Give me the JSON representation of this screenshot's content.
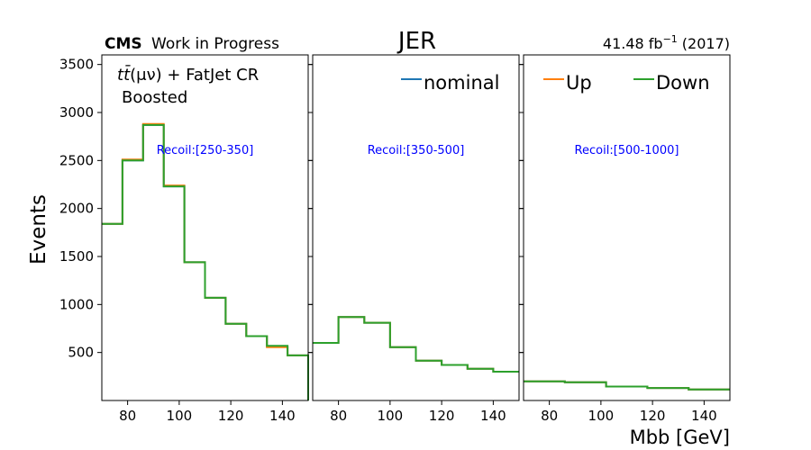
{
  "header": {
    "cms": "CMS",
    "work": "Work in Progress",
    "title": "JER",
    "lumi_value": "41.48 fb",
    "lumi_exp": "−1",
    "lumi_year": "(2017)",
    "title_color": "#ff0000"
  },
  "annotation": {
    "process_prefix": "t",
    "process_tbar": "t̄",
    "process_rest": "(μν) + FatJet CR",
    "category": "Boosted"
  },
  "colors": {
    "nominal": "#1f77b4",
    "up": "#ff7f0e",
    "down": "#2ca02c",
    "recoil_label": "#0000ff"
  },
  "chart_data": {
    "type": "line",
    "drawstyle": "steps",
    "ylabel": "Events",
    "xlabel": "Mbb [GeV]",
    "ylim": [
      0,
      3600
    ],
    "yticks": [
      500,
      1000,
      1500,
      2000,
      2500,
      3000,
      3500
    ],
    "xticks": [
      80,
      100,
      120,
      140
    ],
    "xlim": [
      70,
      150
    ],
    "legend": [
      "nominal",
      "Up",
      "Down"
    ],
    "panels": [
      {
        "label": "Recoil:[250-350]",
        "bin_edges": [
          70,
          78,
          86,
          94,
          102,
          110,
          118,
          126,
          134,
          142,
          150
        ],
        "series": [
          {
            "name": "nominal",
            "values": [
              1840,
              2500,
              2870,
              2230,
              1440,
              1070,
              800,
              670,
              560,
              470
            ]
          },
          {
            "name": "Up",
            "values": [
              1840,
              2510,
              2880,
              2240,
              1440,
              1070,
              800,
              670,
              555,
              470
            ]
          },
          {
            "name": "Down",
            "values": [
              1840,
              2500,
              2870,
              2230,
              1440,
              1070,
              800,
              670,
              570,
              470
            ]
          }
        ]
      },
      {
        "label": "Recoil:[350-500]",
        "bin_edges": [
          70,
          80,
          90,
          100,
          110,
          120,
          130,
          140,
          150
        ],
        "series": [
          {
            "name": "nominal",
            "values": [
              600,
              870,
              810,
              555,
              415,
              370,
              330,
              300
            ]
          },
          {
            "name": "Up",
            "values": [
              600,
              870,
              810,
              555,
              415,
              370,
              330,
              300
            ]
          },
          {
            "name": "Down",
            "values": [
              600,
              870,
              810,
              555,
              415,
              370,
              330,
              300
            ]
          }
        ]
      },
      {
        "label": "Recoil:[500-1000]",
        "bin_edges": [
          70,
          86,
          102,
          118,
          134,
          150
        ],
        "series": [
          {
            "name": "nominal",
            "values": [
              200,
              190,
              145,
              130,
              115
            ]
          },
          {
            "name": "Up",
            "values": [
              200,
              190,
              145,
              130,
              115
            ]
          },
          {
            "name": "Down",
            "values": [
              200,
              190,
              145,
              130,
              115
            ]
          }
        ]
      }
    ]
  }
}
